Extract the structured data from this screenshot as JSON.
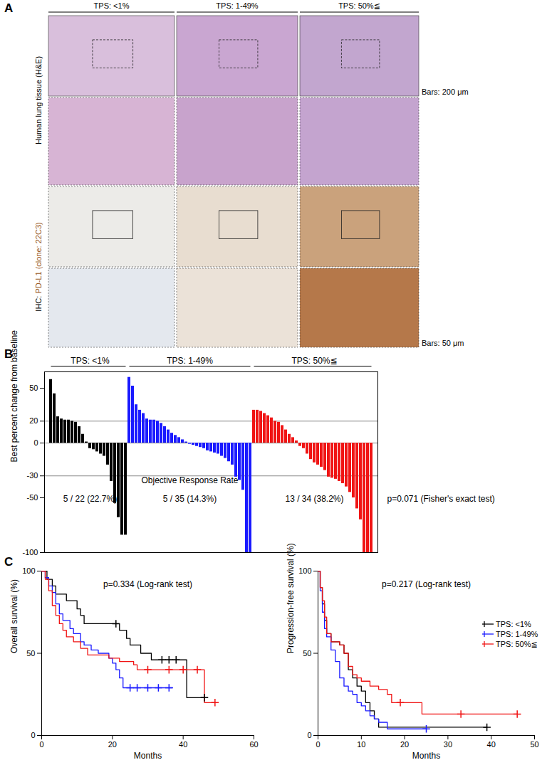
{
  "panel_labels": [
    "A",
    "B",
    "C"
  ],
  "panel_a": {
    "column_labels": [
      "TPS: <1%",
      "TPS: 1-49%",
      "TPS: 50%≦"
    ],
    "row_labels": [
      [
        "Human lung tissue (H&E)"
      ],
      [
        "IHC: ",
        "PD-L1 (clone: 22C3)"
      ]
    ],
    "scale_bars": [
      "Bars: 200 μm",
      "Bars: 50 μm"
    ]
  },
  "chart_data": [
    {
      "type": "bar",
      "y_label": "Best percent change from baseline",
      "ylim": [
        -100,
        65
      ],
      "yticks": [
        -100,
        -50,
        -30,
        0,
        20,
        50
      ],
      "reference_lines": [
        20,
        0,
        -30
      ],
      "tick_labels": "y",
      "annotation": "Objective Response Rate",
      "p_value": "p=0.071 (Fisher's exact test)",
      "series": [
        {
          "name": "TPS: <1%",
          "color": "#000000",
          "annotation": "5 / 22 (22.7%)",
          "values": [
            58,
            45,
            24,
            22,
            21,
            21,
            20,
            19,
            15,
            8,
            1,
            -5,
            -6,
            -8,
            -10,
            -12,
            -20,
            -35,
            -55,
            -68,
            -84,
            -84
          ]
        },
        {
          "name": "TPS: 1-49%",
          "color": "#1a1aff",
          "annotation": "5 / 35 (14.3%)",
          "values": [
            60,
            52,
            35,
            30,
            27,
            22,
            21,
            21,
            20,
            18,
            15,
            12,
            9,
            7,
            5,
            3,
            1,
            -1,
            -2,
            -3,
            -4,
            -5,
            -7,
            -8,
            -9,
            -10,
            -12,
            -14,
            -17,
            -20,
            -31,
            -34,
            -43,
            -100,
            -100
          ]
        },
        {
          "name": "TPS: 50%≦",
          "color": "#f01414",
          "annotation": "13 / 34 (38.2%)",
          "values": [
            30,
            30,
            29,
            27,
            25,
            23,
            20,
            19,
            16,
            12,
            8,
            5,
            2,
            -3,
            -5,
            -10,
            -15,
            -18,
            -20,
            -22,
            -25,
            -31,
            -32,
            -33,
            -35,
            -37,
            -40,
            -45,
            -50,
            -60,
            -70,
            -100,
            -100,
            -100
          ]
        }
      ]
    },
    {
      "type": "line",
      "x_label": "Months",
      "y_label": "Overall survival (%)",
      "annotation": "p=0.334 (Log-rank test)",
      "xlim": [
        0,
        60
      ],
      "xticks": [
        0,
        20,
        40,
        60
      ],
      "ylim": [
        0,
        100
      ],
      "yticks": [
        0,
        50,
        100
      ],
      "line_style": "step",
      "marker": "plus",
      "series": [
        {
          "name": "TPS: <1%",
          "color": "#000000",
          "x": [
            0,
            1.5,
            3,
            4,
            7,
            10,
            11,
            12,
            22,
            24,
            25,
            28,
            31,
            41,
            46
          ],
          "values": [
            100,
            95,
            91,
            86,
            82,
            77,
            73,
            68,
            64,
            59,
            55,
            50,
            46,
            23,
            23
          ],
          "censor_x": [
            21,
            34,
            36,
            38,
            46
          ],
          "censor_y": [
            68,
            46,
            46,
            46,
            23
          ]
        },
        {
          "name": "TPS: 1-49%",
          "color": "#1a1aff",
          "x": [
            0,
            1,
            2,
            3,
            4,
            5,
            6,
            8,
            9,
            11,
            12,
            14,
            16,
            19,
            20,
            21,
            22,
            23,
            37
          ],
          "values": [
            100,
            96,
            91,
            87,
            80,
            74,
            70,
            65,
            62,
            57,
            55,
            52,
            50,
            47,
            44,
            40,
            35,
            29,
            29
          ],
          "censor_x": [
            25,
            27,
            30,
            33,
            36
          ],
          "censor_y": [
            29,
            29,
            29,
            29,
            29
          ]
        },
        {
          "name": "TPS: 50%≦",
          "color": "#f01414",
          "x": [
            0,
            1,
            2,
            3,
            4,
            5,
            6,
            7,
            9,
            11,
            13,
            19,
            22,
            26,
            27,
            46,
            49
          ],
          "values": [
            100,
            95,
            88,
            79,
            73,
            68,
            64,
            60,
            57,
            53,
            49,
            47,
            45,
            43,
            40,
            20,
            20
          ],
          "censor_x": [
            30,
            36,
            40,
            44,
            49
          ],
          "censor_y": [
            40,
            40,
            40,
            40,
            20
          ]
        }
      ]
    },
    {
      "type": "line",
      "x_label": "Months",
      "y_label": "Progression-free survival (%)",
      "annotation": "p=0.217 (Log-rank test)",
      "xlim": [
        0,
        50
      ],
      "xticks": [
        0,
        10,
        20,
        30,
        40,
        50
      ],
      "ylim": [
        0,
        100
      ],
      "yticks": [
        0,
        50,
        100
      ],
      "line_style": "step",
      "marker": "plus",
      "legend": "top-right",
      "series": [
        {
          "name": "TPS: <1%",
          "color": "#000000",
          "x": [
            0,
            0.5,
            1,
            1.5,
            2,
            3,
            5,
            6,
            7,
            8,
            9,
            10,
            11,
            12,
            13,
            14,
            39
          ],
          "values": [
            100,
            90,
            80,
            70,
            62,
            57,
            55,
            50,
            40,
            35,
            30,
            27,
            20,
            15,
            10,
            5,
            5
          ],
          "censor_x": [
            39
          ],
          "censor_y": [
            5
          ]
        },
        {
          "name": "TPS: 1-49%",
          "color": "#1a1aff",
          "x": [
            0,
            0.5,
            1,
            1.5,
            2,
            3,
            4,
            5,
            6,
            7,
            8,
            9,
            10,
            11,
            12,
            13,
            14,
            16,
            25
          ],
          "values": [
            100,
            88,
            75,
            65,
            60,
            52,
            45,
            35,
            30,
            27,
            25,
            20,
            18,
            15,
            12,
            10,
            8,
            4,
            4
          ],
          "censor_x": [
            25
          ],
          "censor_y": [
            4
          ]
        },
        {
          "name": "TPS: 50%≦",
          "color": "#f01414",
          "x": [
            0,
            0.5,
            1,
            1.5,
            2,
            3,
            5,
            6,
            7,
            8,
            9,
            10,
            12,
            14,
            16,
            17,
            24,
            46
          ],
          "values": [
            100,
            90,
            82,
            72,
            62,
            57,
            55,
            50,
            42,
            37,
            35,
            33,
            30,
            28,
            25,
            20,
            13,
            13
          ],
          "censor_x": [
            19,
            33,
            46
          ],
          "censor_y": [
            20,
            13,
            13
          ]
        }
      ]
    }
  ]
}
